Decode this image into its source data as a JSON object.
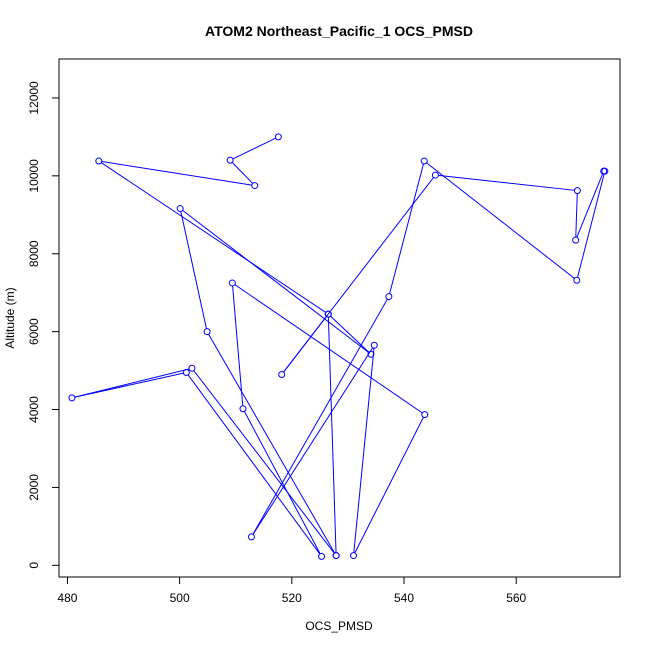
{
  "chart_data": {
    "type": "line",
    "title": "ATOM2 Northeast_Pacific_1 OCS_PMSD",
    "xlabel": "OCS_PMSD",
    "ylabel": "Altitude (m)",
    "xlim": [
      478.5,
      578.5
    ],
    "ylim": [
      -300,
      13000
    ],
    "x_ticks": [
      480,
      500,
      520,
      540,
      560
    ],
    "y_ticks": [
      0,
      2000,
      4000,
      6000,
      8000,
      10000,
      12000
    ],
    "series": [
      {
        "color": "#0000ff",
        "marker": "open-circle",
        "points": [
          [
            517.6,
            11000
          ],
          [
            509.0,
            10400
          ],
          [
            513.4,
            9750
          ],
          [
            485.6,
            10380
          ],
          [
            526.5,
            6450
          ],
          [
            518.2,
            4900
          ],
          [
            545.6,
            10020
          ],
          [
            570.9,
            9620
          ],
          [
            570.6,
            8350
          ],
          [
            575.6,
            10120
          ],
          [
            575.8,
            10120
          ],
          [
            570.8,
            7320
          ],
          [
            543.6,
            10380
          ],
          [
            537.3,
            6900
          ],
          [
            512.8,
            730
          ],
          [
            534.7,
            5650
          ],
          [
            531.0,
            250
          ],
          [
            543.7,
            3870
          ],
          [
            509.4,
            7250
          ],
          [
            511.3,
            4020
          ],
          [
            525.3,
            230
          ],
          [
            501.2,
            4950
          ],
          [
            480.8,
            4300
          ],
          [
            502.2,
            5060
          ],
          [
            527.9,
            250
          ],
          [
            526.5,
            6450
          ],
          [
            534.1,
            5420
          ],
          [
            500.1,
            9160
          ],
          [
            504.9,
            6000
          ],
          [
            527.9,
            250
          ]
        ]
      }
    ]
  }
}
